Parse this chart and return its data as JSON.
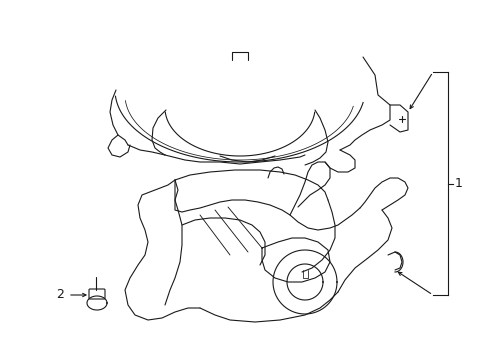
{
  "bg_color": "#ffffff",
  "line_color": "#1a1a1a",
  "line_width": 0.8,
  "label1": "1",
  "label2": "2",
  "figsize": [
    4.89,
    3.6
  ],
  "dpi": 100
}
